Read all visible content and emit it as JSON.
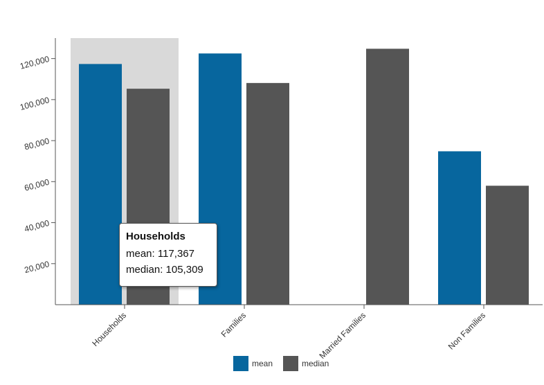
{
  "chart_data": {
    "type": "bar",
    "title": "",
    "xlabel": "",
    "ylabel": "",
    "categories": [
      "Households",
      "Families",
      "Married Families",
      "Non Families"
    ],
    "series": [
      {
        "name": "mean",
        "color": "#07669E",
        "values": [
          117367,
          122500,
          null,
          74800
        ]
      },
      {
        "name": "median",
        "color": "#555555",
        "values": [
          105309,
          108100,
          124800,
          58000
        ]
      }
    ],
    "ylim": [
      0,
      130000
    ],
    "yticks": [
      20000,
      40000,
      60000,
      80000,
      100000,
      120000
    ],
    "ytick_labels": [
      "20,000",
      "40,000",
      "60,000",
      "80,000",
      "100,000",
      "120,000"
    ],
    "grid": false,
    "legend": "bottom-center",
    "highlighted_category": "Households"
  },
  "tooltip": {
    "title": "Households",
    "mean_line": "mean: 117,367",
    "median_line": "median: 105,309"
  },
  "legend": {
    "items": [
      {
        "label": "mean",
        "color": "#07669E"
      },
      {
        "label": "median",
        "color": "#555555"
      }
    ]
  }
}
